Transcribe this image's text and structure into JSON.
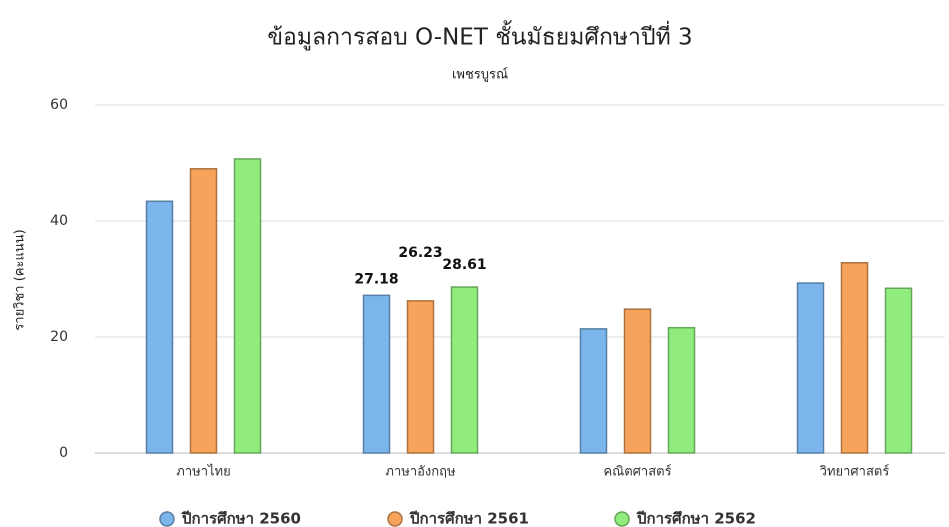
{
  "chart_data": {
    "type": "bar",
    "title": "ข้อมูลการสอบ O-NET ชั้นมัธยมศึกษาปีที่ 3",
    "subtitle": "เพชรบูรณ์",
    "y_label": "รายวิชา (คะแนน)",
    "categories": [
      "ภาษาไทย",
      "ภาษาอังกฤษ",
      "คณิตศาสตร์",
      "วิทยาศาสตร์"
    ],
    "series": [
      {
        "name": "ปีการศึกษา 2560",
        "color": "#7cb5ec",
        "values": [
          43.4,
          27.18,
          21.4,
          29.3
        ]
      },
      {
        "name": "ปีการศึกษา 2561",
        "color": "#f7a35c",
        "values": [
          49.0,
          26.23,
          24.8,
          32.8
        ]
      },
      {
        "name": "ปีการศึกษา 2562",
        "color": "#90ed7d",
        "values": [
          50.7,
          28.61,
          21.6,
          28.4
        ]
      }
    ],
    "show_labels": [
      false,
      true,
      false,
      false
    ],
    "ylim": [
      0,
      60
    ],
    "yticks": [
      0,
      20,
      40,
      60
    ],
    "grid": true,
    "legend": "bottom"
  }
}
